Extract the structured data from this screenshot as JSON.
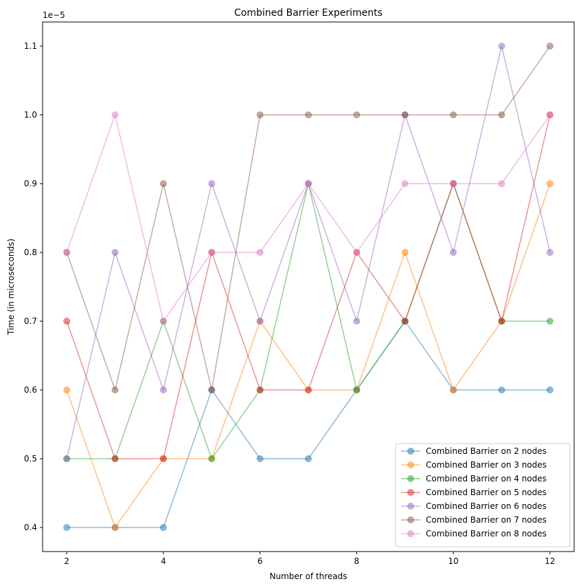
{
  "chart_data": {
    "type": "line",
    "title": "Combined Barrier Experiments",
    "xlabel": "Number of threads",
    "ylabel": "Time (in microseconds)",
    "y_offset_text": "1e−5",
    "x": [
      2,
      3,
      4,
      5,
      6,
      7,
      8,
      9,
      10,
      11,
      12
    ],
    "xlim": [
      1.5,
      12.5
    ],
    "ylim": [
      0.365,
      1.135
    ],
    "x_ticks": [
      2,
      4,
      6,
      8,
      10,
      12
    ],
    "x_tick_labels": [
      "2",
      "4",
      "6",
      "8",
      "10",
      "12"
    ],
    "y_ticks": [
      0.4,
      0.5,
      0.6,
      0.7,
      0.8,
      0.9,
      1.0,
      1.1
    ],
    "y_tick_labels": [
      "0.4",
      "0.5",
      "0.6",
      "0.7",
      "0.8",
      "0.9",
      "1.0",
      "1.1"
    ],
    "grid": false,
    "legend_position": "bottom-right",
    "series": [
      {
        "name": "Combined Barrier on 2 nodes",
        "color": "#1f77b4",
        "values": [
          0.4,
          0.4,
          0.4,
          0.6,
          0.5,
          0.5,
          0.6,
          0.7,
          0.6,
          0.6,
          0.6
        ]
      },
      {
        "name": "Combined Barrier on 3 nodes",
        "color": "#ff7f0e",
        "values": [
          0.6,
          0.4,
          0.5,
          0.5,
          0.7,
          0.6,
          0.6,
          0.8,
          0.6,
          0.7,
          0.9
        ]
      },
      {
        "name": "Combined Barrier on 4 nodes",
        "color": "#2ca02c",
        "values": [
          0.5,
          0.5,
          0.7,
          0.5,
          0.6,
          0.9,
          0.6,
          0.7,
          0.9,
          0.7,
          0.7
        ]
      },
      {
        "name": "Combined Barrier on 5 nodes",
        "color": "#d62728",
        "values": [
          0.7,
          0.5,
          0.5,
          0.8,
          0.6,
          0.6,
          0.8,
          0.7,
          0.9,
          0.7,
          1.0
        ]
      },
      {
        "name": "Combined Barrier on 6 nodes",
        "color": "#9467bd",
        "values": [
          0.5,
          0.8,
          0.6,
          0.9,
          0.7,
          0.9,
          0.7,
          1.0,
          0.8,
          1.1,
          0.8
        ]
      },
      {
        "name": "Combined Barrier on 7 nodes",
        "color": "#8c564b",
        "values": [
          0.8,
          0.6,
          0.9,
          0.6,
          1.0,
          1.0,
          1.0,
          1.0,
          1.0,
          1.0,
          1.1
        ]
      },
      {
        "name": "Combined Barrier on 8 nodes",
        "color": "#e377c2",
        "values": [
          0.8,
          1.0,
          0.7,
          0.8,
          0.8,
          0.9,
          0.8,
          0.9,
          0.9,
          0.9,
          1.0
        ]
      }
    ]
  }
}
